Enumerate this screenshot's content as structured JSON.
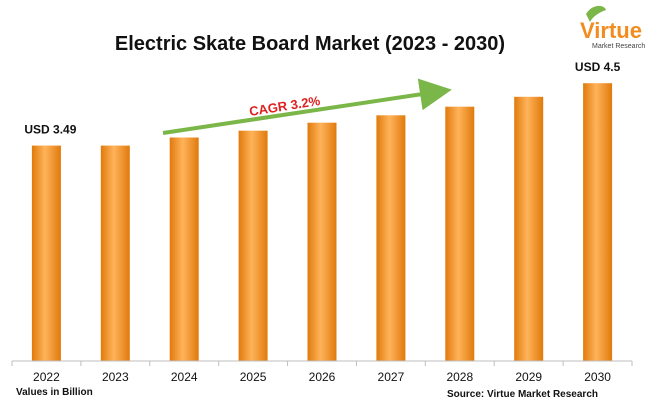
{
  "chart_data": {
    "type": "bar",
    "title": "Electric Skate Board Market (2023 - 2030)",
    "categories": [
      "2022",
      "2023",
      "2024",
      "2025",
      "2026",
      "2027",
      "2028",
      "2029",
      "2030"
    ],
    "values": [
      3.49,
      3.49,
      3.62,
      3.73,
      3.86,
      3.98,
      4.12,
      4.28,
      4.5
    ],
    "ylim": [
      0,
      5.2
    ],
    "xlabel": "",
    "ylabel": "",
    "grid": false,
    "bar_color": "#f7931e",
    "bar_color_light": "#ffb35a",
    "bar_color_dark": "#e07a0c",
    "data_labels": [
      {
        "index": 0,
        "text": "USD 3.49"
      },
      {
        "index": 8,
        "text": "USD 4.5"
      }
    ],
    "annotation": {
      "text": "CAGR 3.2%",
      "arrow_color": "#7ab648",
      "text_color": "#e02020"
    },
    "units_note": "Values in Billion",
    "source": "Source: Virtue Market Research"
  },
  "logo": {
    "name": "Virtue",
    "tagline": "Market Research",
    "color": "#f28c1e"
  }
}
